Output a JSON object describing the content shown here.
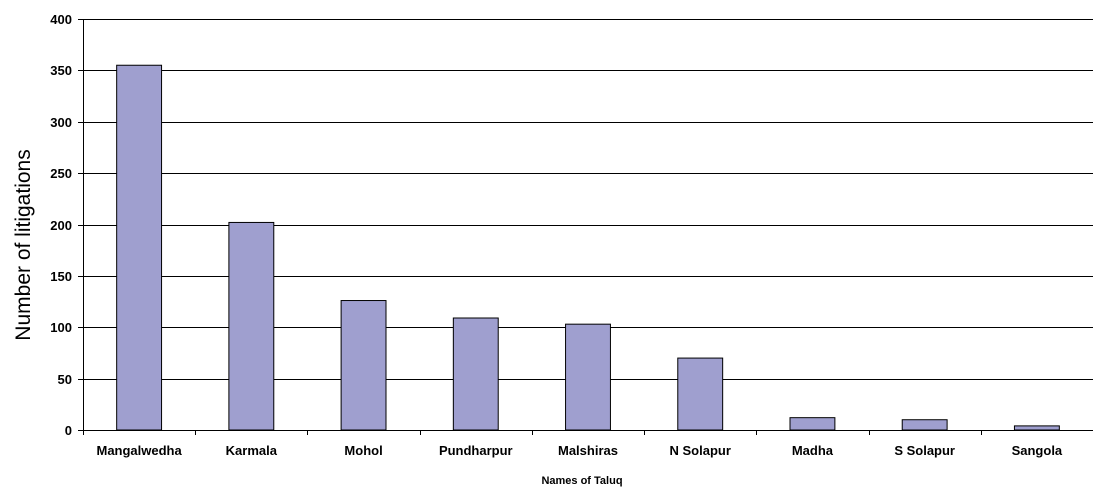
{
  "chart_data": {
    "type": "bar",
    "categories": [
      "Mangalwedha",
      "Karmala",
      "Mohol",
      "Pundharpur",
      "Malshiras",
      "N Solapur",
      "Madha",
      "S Solapur",
      "Sangola"
    ],
    "values": [
      355,
      202,
      126,
      109,
      103,
      70,
      12,
      10,
      4
    ],
    "title": "",
    "xlabel": "Names of Taluq",
    "ylabel": "Number of litigations",
    "ylim": [
      0,
      400
    ],
    "yticks": [
      0,
      50,
      100,
      150,
      200,
      250,
      300,
      350,
      400
    ],
    "grid": true,
    "bar_color": "#9f9fcf",
    "bar_edge_color": "#000000"
  }
}
